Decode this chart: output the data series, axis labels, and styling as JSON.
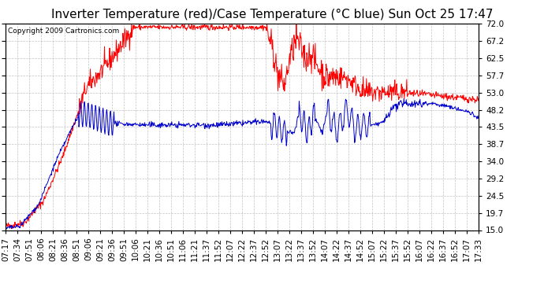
{
  "title": "Inverter Temperature (red)/Case Temperature (°C blue) Sun Oct 25 17:47",
  "copyright": "Copyright 2009 Cartronics.com",
  "y_ticks": [
    15.0,
    19.7,
    24.5,
    29.2,
    34.0,
    38.7,
    43.5,
    48.2,
    53.0,
    57.7,
    62.5,
    67.2,
    72.0
  ],
  "y_min": 15.0,
  "y_max": 72.0,
  "x_labels": [
    "07:17",
    "07:34",
    "07:51",
    "08:06",
    "08:21",
    "08:36",
    "08:51",
    "09:06",
    "09:21",
    "09:36",
    "09:51",
    "10:06",
    "10:21",
    "10:36",
    "10:51",
    "11:06",
    "11:21",
    "11:37",
    "11:52",
    "12:07",
    "12:22",
    "12:37",
    "12:52",
    "13:07",
    "13:22",
    "13:37",
    "13:52",
    "14:07",
    "14:22",
    "14:37",
    "14:52",
    "15:07",
    "15:22",
    "15:37",
    "15:52",
    "16:07",
    "16:22",
    "16:37",
    "16:52",
    "17:07",
    "17:33"
  ],
  "background_color": "#ffffff",
  "plot_bg_color": "#ffffff",
  "grid_color": "#aaaaaa",
  "red_color": "#ff0000",
  "blue_color": "#0000cc",
  "title_fontsize": 11,
  "tick_fontsize": 7.5
}
